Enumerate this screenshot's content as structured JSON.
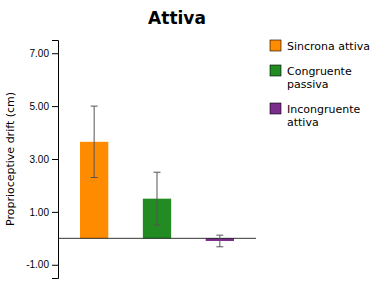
{
  "chart_data": {
    "type": "bar",
    "title": "Attiva",
    "ylabel": "Proprioceptive drift (cm)",
    "categories": [
      "Sincrona attiva",
      "Congruente\npassiva",
      "Incongruente\nattiva"
    ],
    "values": [
      3.65,
      1.5,
      -0.1
    ],
    "errors": [
      1.35,
      1.0,
      0.22
    ],
    "colors": [
      "#FF8C00",
      "#228B22",
      "#7B2D8B"
    ],
    "ylim": [
      -1.5,
      7.5
    ],
    "yticks": [
      {
        "value": -1.0,
        "label": "-1.00"
      },
      {
        "value": 1.0,
        "label": "1.00"
      },
      {
        "value": 3.0,
        "label": "3.00"
      },
      {
        "value": 5.0,
        "label": "5.00"
      },
      {
        "value": 7.0,
        "label": "7.00"
      }
    ],
    "grid": false,
    "legend": "right",
    "tick_labels": "y"
  }
}
